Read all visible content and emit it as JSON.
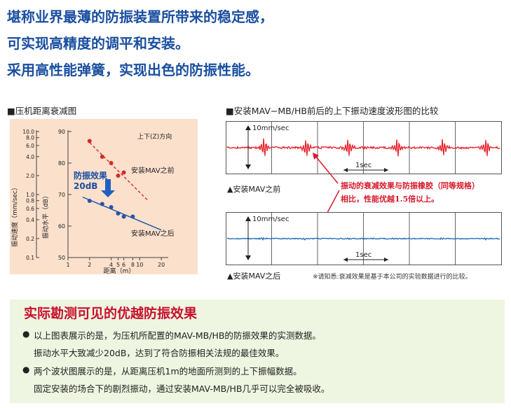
{
  "headlines": [
    "堪称业界最薄的防振装置所带来的稳定感，",
    "可实现高精度的调平和安装。",
    "采用高性能弹簧，实现出色的防振性能。"
  ],
  "left_section_title": "■压机距离衰减图",
  "right_section_title": "■安装MAV−MB/HB前后的上下振动速度波形图的比较",
  "chart_data": {
    "type": "scatter",
    "direction_label": "上下(Z)方向",
    "xlabel": "距离（m）",
    "ylabel_left": "振动速度（mm/sec）",
    "ylabel_right": "振动水平（dB）",
    "x_ticks": [
      "1",
      "2",
      "4",
      "5",
      "6",
      "8",
      "10",
      "20"
    ],
    "y_left_ticks": [
      "10.0",
      "8.0",
      "6.0",
      "4.0",
      "2.0",
      "1.0",
      "0.8",
      "0.6",
      "0.4",
      "0.2",
      "0.1"
    ],
    "y_right_ticks": [
      "90",
      "80",
      "70",
      "60",
      "50"
    ],
    "x_scale": "log",
    "series": [
      {
        "name": "安装MAV之前",
        "color": "#d42a2a",
        "fit": "dashed",
        "x": [
          2,
          3,
          4,
          5,
          6
        ],
        "y": [
          87,
          82,
          80,
          76,
          77
        ]
      },
      {
        "name": "安装MAV之后",
        "color": "#2356a8",
        "fit": "solid",
        "x": [
          2,
          3,
          4,
          5,
          6,
          8
        ],
        "y": [
          68,
          67,
          66,
          64,
          63,
          63
        ]
      }
    ],
    "annotation_title": "防振效果",
    "annotation_value": "20dB"
  },
  "waveform_top": {
    "scale_label": "10mm/sec",
    "time_label": "1sec",
    "caption": "▲安装MAV之前",
    "color": "#e8202a"
  },
  "waveform_bottom": {
    "scale_label": "10mm/sec",
    "time_label": "1sec",
    "caption": "▲安装MAV之后",
    "color": "#1c6bb8"
  },
  "red_note": [
    "振动的衰减效果与防振橡胶（同等规格）",
    "相比，性能优越1.5倍以上。"
  ],
  "footnote": "※请知悉:衰减效果是基于本公司的实验数据进行的比较。",
  "panel": {
    "title": "实际勘测可见的优越防振效果",
    "bullets": [
      {
        "lines": [
          "以上图表展示的是，为压机所配置的MAV-MB/HB的防振效果的实测数据。",
          "振动水平大致减少20dB，达到了符合防振相关法规的最佳效果。"
        ]
      },
      {
        "lines": [
          "两个波状图展示的是，从距离压机1m的地面所测到的上下振幅数据。",
          "固定安装的场合下的剧烈振动，通过安装MAV-MB/HB几乎可以完全被吸收。"
        ]
      }
    ]
  }
}
